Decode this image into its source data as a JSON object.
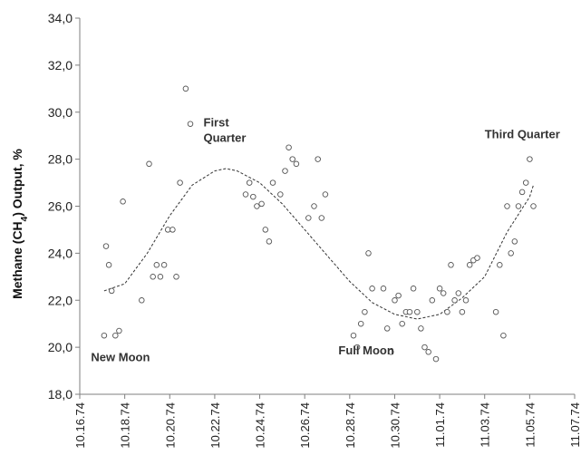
{
  "chart_data": {
    "type": "scatter",
    "title": "",
    "xlabel": "",
    "ylabel": "Methane (CH4) Output, %",
    "ylabel_parts": [
      "Methane (CH",
      "4",
      ") Output, %"
    ],
    "ylim": [
      18,
      34
    ],
    "yticks": [
      "18,0",
      "20,0",
      "22,0",
      "24,0",
      "26,0",
      "28,0",
      "30,0",
      "32,0",
      "34,0"
    ],
    "xlim": [
      "1974-10-16",
      "1974-11-07"
    ],
    "xticks": [
      "10.16.74",
      "10.18.74",
      "10.20.74",
      "10.22.74",
      "10.24.74",
      "10.26.74",
      "10.28.74",
      "10.30.74",
      "11.01.74",
      "11.03.74",
      "11.05.74",
      "11.07.74"
    ],
    "grid": false,
    "legend": "none",
    "marker": "open-circle",
    "annotations": [
      {
        "text": "New Moon",
        "x": "1974-10-16T12:00",
        "y": 19.4
      },
      {
        "text": "First Quarter",
        "x": "1974-10-21T12:00",
        "y": 29.4
      },
      {
        "text": "Full Moon",
        "x": "1974-10-27T12:00",
        "y": 19.7
      },
      {
        "text": "Third Quarter",
        "x": "1974-11-03T00:00",
        "y": 28.9
      }
    ],
    "series": [
      {
        "kind": "scatter",
        "points": [
          {
            "x": "1974-10-17T02:00",
            "y": 20.5
          },
          {
            "x": "1974-10-17T04:00",
            "y": 24.3
          },
          {
            "x": "1974-10-17T07:00",
            "y": 23.5
          },
          {
            "x": "1974-10-17T10:00",
            "y": 22.4
          },
          {
            "x": "1974-10-17T14:00",
            "y": 20.5
          },
          {
            "x": "1974-10-17T18:00",
            "y": 20.7
          },
          {
            "x": "1974-10-17T22:00",
            "y": 26.2
          },
          {
            "x": "1974-10-18T18:00",
            "y": 22.0
          },
          {
            "x": "1974-10-19T02:00",
            "y": 27.8
          },
          {
            "x": "1974-10-19T06:00",
            "y": 23.0
          },
          {
            "x": "1974-10-19T10:00",
            "y": 23.5
          },
          {
            "x": "1974-10-19T14:00",
            "y": 23.0
          },
          {
            "x": "1974-10-19T18:00",
            "y": 23.5
          },
          {
            "x": "1974-10-19T22:00",
            "y": 25.0
          },
          {
            "x": "1974-10-20T03:00",
            "y": 25.0
          },
          {
            "x": "1974-10-20T07:00",
            "y": 23.0
          },
          {
            "x": "1974-10-20T11:00",
            "y": 27.0
          },
          {
            "x": "1974-10-20T17:00",
            "y": 31.0
          },
          {
            "x": "1974-10-20T22:00",
            "y": 29.5
          },
          {
            "x": "1974-10-23T09:00",
            "y": 26.5
          },
          {
            "x": "1974-10-23T13:00",
            "y": 27.0
          },
          {
            "x": "1974-10-23T17:00",
            "y": 26.4
          },
          {
            "x": "1974-10-23T21:00",
            "y": 26.0
          },
          {
            "x": "1974-10-24T02:00",
            "y": 26.1
          },
          {
            "x": "1974-10-24T06:00",
            "y": 25.0
          },
          {
            "x": "1974-10-24T10:00",
            "y": 24.5
          },
          {
            "x": "1974-10-24T14:00",
            "y": 27.0
          },
          {
            "x": "1974-10-24T22:00",
            "y": 26.5
          },
          {
            "x": "1974-10-25T03:00",
            "y": 27.5
          },
          {
            "x": "1974-10-25T07:00",
            "y": 28.5
          },
          {
            "x": "1974-10-25T11:00",
            "y": 28.0
          },
          {
            "x": "1974-10-25T15:00",
            "y": 27.8
          },
          {
            "x": "1974-10-26T04:00",
            "y": 25.5
          },
          {
            "x": "1974-10-26T10:00",
            "y": 26.0
          },
          {
            "x": "1974-10-26T14:00",
            "y": 28.0
          },
          {
            "x": "1974-10-26T18:00",
            "y": 25.5
          },
          {
            "x": "1974-10-26T22:00",
            "y": 26.5
          },
          {
            "x": "1974-10-28T04:00",
            "y": 20.5
          },
          {
            "x": "1974-10-28T08:00",
            "y": 20.0
          },
          {
            "x": "1974-10-28T12:00",
            "y": 21.0
          },
          {
            "x": "1974-10-28T16:00",
            "y": 21.5
          },
          {
            "x": "1974-10-28T20:00",
            "y": 24.0
          },
          {
            "x": "1974-10-29T00:00",
            "y": 22.5
          },
          {
            "x": "1974-10-29T12:00",
            "y": 22.5
          },
          {
            "x": "1974-10-29T16:00",
            "y": 20.8
          },
          {
            "x": "1974-10-29T20:00",
            "y": 19.8
          },
          {
            "x": "1974-10-30T00:00",
            "y": 22.0
          },
          {
            "x": "1974-10-30T04:00",
            "y": 22.2
          },
          {
            "x": "1974-10-30T08:00",
            "y": 21.0
          },
          {
            "x": "1974-10-30T12:00",
            "y": 21.5
          },
          {
            "x": "1974-10-30T16:00",
            "y": 21.5
          },
          {
            "x": "1974-10-30T20:00",
            "y": 22.5
          },
          {
            "x": "1974-10-31T00:00",
            "y": 21.5
          },
          {
            "x": "1974-10-31T04:00",
            "y": 20.8
          },
          {
            "x": "1974-10-31T08:00",
            "y": 20.0
          },
          {
            "x": "1974-10-31T12:00",
            "y": 19.8
          },
          {
            "x": "1974-10-31T16:00",
            "y": 22.0
          },
          {
            "x": "1974-10-31T20:00",
            "y": 19.5
          },
          {
            "x": "1974-11-01T00:00",
            "y": 22.5
          },
          {
            "x": "1974-11-01T04:00",
            "y": 22.3
          },
          {
            "x": "1974-11-01T08:00",
            "y": 21.5
          },
          {
            "x": "1974-11-01T12:00",
            "y": 23.5
          },
          {
            "x": "1974-11-01T16:00",
            "y": 22.0
          },
          {
            "x": "1974-11-01T20:00",
            "y": 22.3
          },
          {
            "x": "1974-11-02T00:00",
            "y": 21.5
          },
          {
            "x": "1974-11-02T04:00",
            "y": 22.0
          },
          {
            "x": "1974-11-02T08:00",
            "y": 23.5
          },
          {
            "x": "1974-11-02T12:00",
            "y": 23.7
          },
          {
            "x": "1974-11-02T16:00",
            "y": 23.8
          },
          {
            "x": "1974-11-03T12:00",
            "y": 21.5
          },
          {
            "x": "1974-11-03T16:00",
            "y": 23.5
          },
          {
            "x": "1974-11-03T20:00",
            "y": 20.5
          },
          {
            "x": "1974-11-04T00:00",
            "y": 26.0
          },
          {
            "x": "1974-11-04T04:00",
            "y": 24.0
          },
          {
            "x": "1974-11-04T08:00",
            "y": 24.5
          },
          {
            "x": "1974-11-04T12:00",
            "y": 26.0
          },
          {
            "x": "1974-11-04T16:00",
            "y": 26.6
          },
          {
            "x": "1974-11-04T20:00",
            "y": 27.0
          },
          {
            "x": "1974-11-05T00:00",
            "y": 28.0
          },
          {
            "x": "1974-11-05T04:00",
            "y": 26.0
          }
        ]
      },
      {
        "kind": "trend",
        "style": "dashed",
        "points": [
          {
            "x": "1974-10-17T02:00",
            "y": 22.4
          },
          {
            "x": "1974-10-18T00:00",
            "y": 22.7
          },
          {
            "x": "1974-10-19T00:00",
            "y": 24.0
          },
          {
            "x": "1974-10-20T00:00",
            "y": 25.6
          },
          {
            "x": "1974-10-21T00:00",
            "y": 26.9
          },
          {
            "x": "1974-10-22T00:00",
            "y": 27.5
          },
          {
            "x": "1974-10-22T12:00",
            "y": 27.6
          },
          {
            "x": "1974-10-23T00:00",
            "y": 27.5
          },
          {
            "x": "1974-10-24T00:00",
            "y": 27.0
          },
          {
            "x": "1974-10-25T00:00",
            "y": 26.1
          },
          {
            "x": "1974-10-26T00:00",
            "y": 25.0
          },
          {
            "x": "1974-10-27T00:00",
            "y": 23.9
          },
          {
            "x": "1974-10-28T00:00",
            "y": 22.8
          },
          {
            "x": "1974-10-29T00:00",
            "y": 21.9
          },
          {
            "x": "1974-10-30T00:00",
            "y": 21.4
          },
          {
            "x": "1974-10-31T00:00",
            "y": 21.2
          },
          {
            "x": "1974-11-01T00:00",
            "y": 21.4
          },
          {
            "x": "1974-11-02T00:00",
            "y": 22.1
          },
          {
            "x": "1974-11-03T00:00",
            "y": 23.0
          },
          {
            "x": "1974-11-04T00:00",
            "y": 24.9
          },
          {
            "x": "1974-11-05T00:00",
            "y": 26.4
          },
          {
            "x": "1974-11-05T04:00",
            "y": 26.9
          }
        ]
      }
    ]
  }
}
